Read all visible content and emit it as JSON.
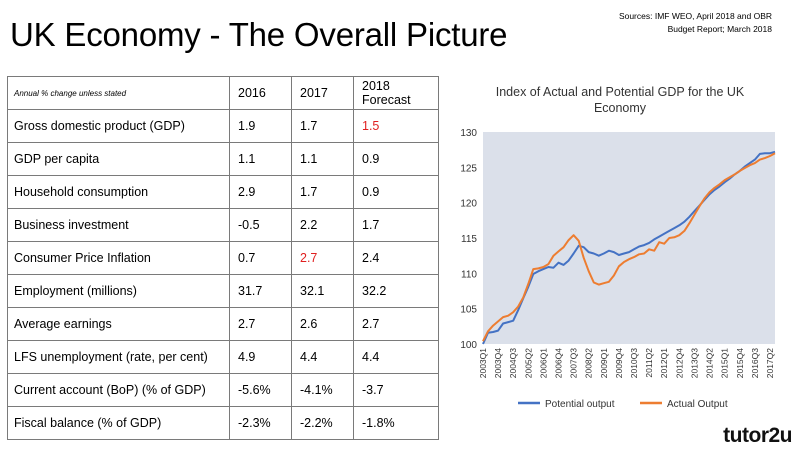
{
  "slide": {
    "title": "UK Economy - The Overall Picture",
    "sources_line1": "Sources: IMF WEO, April 2018 and OBR",
    "sources_line2": "Budget Report; March 2018",
    "brand": "tutor2u"
  },
  "table": {
    "unit_note": "Annual % change unless stated",
    "years": [
      "2016",
      "2017",
      "2018"
    ],
    "forecast_label": "Forecast",
    "rows": [
      {
        "label": "Gross domestic product (GDP)",
        "v2016": "1.9",
        "v2017": "1.7",
        "v2018": "1.5"
      },
      {
        "label": "GDP per capita",
        "v2016": "1.1",
        "v2017": "1.1",
        "v2018": "0.9"
      },
      {
        "label": "Household consumption",
        "v2016": "2.9",
        "v2017": "1.7",
        "v2018": "0.9"
      },
      {
        "label": "Business investment",
        "v2016": "-0.5",
        "v2017": "2.2",
        "v2018": "1.7"
      },
      {
        "label": "Consumer Price Inflation",
        "v2016": "0.7",
        "v2017": "2.7",
        "v2018": "2.4"
      },
      {
        "label": "Employment (millions)",
        "v2016": "31.7",
        "v2017": "32.1",
        "v2018": "32.2"
      },
      {
        "label": "Average earnings",
        "v2016": "2.7",
        "v2017": "2.6",
        "v2018": "2.7"
      },
      {
        "label": "LFS unemployment (rate, per cent)",
        "v2016": "4.9",
        "v2017": "4.4",
        "v2018": "4.4"
      },
      {
        "label": "Current account (BoP) (% of GDP)",
        "v2016": "-5.6%",
        "v2017": "-4.1%",
        "v2018": "-3.7"
      },
      {
        "label": "Fiscal balance (% of GDP)",
        "v2016": "-2.3%",
        "v2017": "-2.2%",
        "v2018": "-1.8%"
      }
    ],
    "highlight_color": "#e02020"
  },
  "chart_data": {
    "type": "line",
    "title": "Index of Actual and Potential GDP for the UK Economy",
    "title_line1": "Index of Actual and Potential GDP for the UK",
    "title_line2": "Economy",
    "x": [
      "2003Q1",
      "2003Q2",
      "2003Q3",
      "2003Q4",
      "2004Q1",
      "2004Q2",
      "2004Q3",
      "2004Q4",
      "2005Q1",
      "2005Q2",
      "2005Q3",
      "2005Q4",
      "2006Q1",
      "2006Q2",
      "2006Q3",
      "2006Q4",
      "2007Q1",
      "2007Q2",
      "2007Q3",
      "2007Q4",
      "2008Q1",
      "2008Q2",
      "2008Q3",
      "2008Q4",
      "2009Q1",
      "2009Q2",
      "2009Q3",
      "2009Q4",
      "2010Q1",
      "2010Q2",
      "2010Q3",
      "2010Q4",
      "2011Q1",
      "2011Q2",
      "2011Q3",
      "2011Q4",
      "2012Q1",
      "2012Q2",
      "2012Q3",
      "2012Q4",
      "2013Q1",
      "2013Q2",
      "2013Q3",
      "2013Q4",
      "2014Q1",
      "2014Q2",
      "2014Q3",
      "2014Q4",
      "2015Q1",
      "2015Q2",
      "2015Q3",
      "2015Q4",
      "2016Q1",
      "2016Q2",
      "2016Q3",
      "2016Q4",
      "2017Q1",
      "2017Q2",
      "2017Q3"
    ],
    "x_tick_labels": [
      "2003Q1",
      "2003Q4",
      "2004Q3",
      "2005Q2",
      "2006Q1",
      "2006Q4",
      "2007Q3",
      "2008Q2",
      "2009Q1",
      "2009Q4",
      "2010Q3",
      "2011Q2",
      "2012Q1",
      "2012Q4",
      "2013Q3",
      "2014Q2",
      "2015Q1",
      "2015Q4",
      "2016Q3",
      "2017Q2"
    ],
    "ylim": [
      100,
      130
    ],
    "y_ticks": [
      100,
      105,
      110,
      115,
      120,
      125,
      130
    ],
    "grid": false,
    "plot_background": "#dbe0ea",
    "legend_position": "bottom",
    "series": [
      {
        "name": "Potential output",
        "color": "#4472c4",
        "values": [
          100.0,
          101.6,
          101.7,
          101.9,
          102.9,
          103.1,
          103.3,
          104.8,
          106.5,
          108.1,
          109.9,
          110.3,
          110.6,
          110.9,
          110.8,
          111.5,
          111.2,
          111.8,
          112.8,
          113.9,
          113.7,
          113.0,
          112.8,
          112.5,
          112.8,
          113.2,
          113.0,
          112.6,
          112.8,
          113.0,
          113.4,
          113.8,
          114.0,
          114.3,
          114.8,
          115.2,
          115.6,
          116.0,
          116.4,
          116.8,
          117.3,
          118.0,
          118.8,
          119.6,
          120.4,
          121.2,
          121.8,
          122.3,
          122.9,
          123.4,
          124.0,
          124.5,
          125.1,
          125.6,
          126.1,
          126.9,
          127.0,
          127.0,
          127.2
        ]
      },
      {
        "name": "Actual Output",
        "color": "#ed7d31",
        "values": [
          100.4,
          101.8,
          102.6,
          103.2,
          103.8,
          104.0,
          104.5,
          105.3,
          106.6,
          108.5,
          110.6,
          110.7,
          110.9,
          111.3,
          112.5,
          113.1,
          113.7,
          114.7,
          115.4,
          114.6,
          112.2,
          110.3,
          108.7,
          108.4,
          108.6,
          108.8,
          109.7,
          111.0,
          111.6,
          112.0,
          112.3,
          112.7,
          112.8,
          113.4,
          113.2,
          114.4,
          114.2,
          115.0,
          115.1,
          115.4,
          116.0,
          117.1,
          118.3,
          119.5,
          120.6,
          121.5,
          122.1,
          122.6,
          123.2,
          123.6,
          124.0,
          124.5,
          124.9,
          125.3,
          125.6,
          126.1,
          126.3,
          126.6,
          127.0
        ]
      }
    ]
  }
}
